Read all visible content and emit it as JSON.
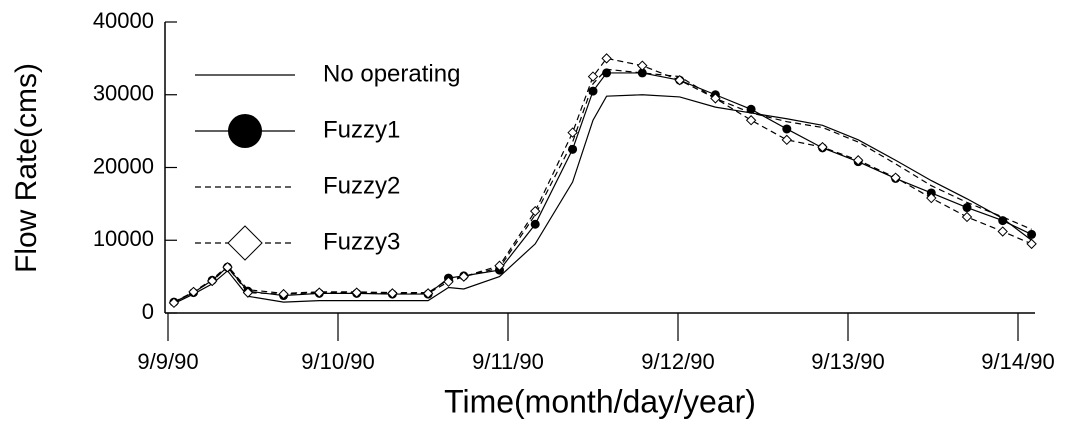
{
  "chart_data": {
    "type": "line",
    "xlabel": "Time(month/day/year)",
    "ylabel": "Flow Rate(cms)",
    "x": [
      0.035,
      0.15,
      0.26,
      0.35,
      0.47,
      0.68,
      0.89,
      1.11,
      1.32,
      1.53,
      1.65,
      1.74,
      1.95,
      2.16,
      2.38,
      2.5,
      2.58,
      2.79,
      3.01,
      3.22,
      3.43,
      3.64,
      3.85,
      4.06,
      4.28,
      4.49,
      4.7,
      4.91,
      5.08
    ],
    "series": [
      {
        "name": "No operating",
        "color": "#000000",
        "dash": "solid",
        "marker": "none",
        "values": [
          1300,
          2600,
          4000,
          5800,
          2300,
          1500,
          1700,
          1700,
          1700,
          1700,
          3500,
          3300,
          5000,
          9500,
          18000,
          26500,
          29800,
          30000,
          29700,
          28300,
          27500,
          26700,
          25800,
          23800,
          21000,
          18200,
          15700,
          13000,
          10000
        ]
      },
      {
        "name": "Fuzzy1",
        "color": "#000000",
        "dash": "solid",
        "marker": "circle",
        "values": [
          1500,
          2800,
          4500,
          6300,
          3000,
          2400,
          2700,
          2700,
          2600,
          2600,
          4800,
          5100,
          5900,
          12200,
          22500,
          30500,
          33000,
          33000,
          32000,
          30000,
          28000,
          25300,
          22700,
          20800,
          18500,
          16500,
          14500,
          12700,
          10800
        ]
      },
      {
        "name": "Fuzzy2",
        "color": "#000000",
        "dash": "dashed",
        "marker": "none",
        "values": [
          1500,
          2900,
          4600,
          6500,
          3200,
          2700,
          2900,
          2900,
          2800,
          2800,
          4600,
          5000,
          6200,
          13500,
          23500,
          31500,
          33500,
          33000,
          32500,
          29500,
          27500,
          26300,
          25500,
          23500,
          20500,
          17500,
          15200,
          13200,
          11500
        ]
      },
      {
        "name": "Fuzzy3",
        "color": "#000000",
        "dash": "dashed",
        "marker": "diamond",
        "values": [
          1400,
          2900,
          4400,
          6300,
          2800,
          2600,
          2800,
          2800,
          2700,
          2700,
          4300,
          5000,
          6500,
          14000,
          24800,
          32500,
          35000,
          34000,
          32000,
          29500,
          26500,
          23800,
          22800,
          21000,
          18600,
          15800,
          13200,
          11200,
          9500
        ]
      }
    ],
    "xlim": [
      0,
      5.1
    ],
    "xticks": [
      {
        "value": 0,
        "label": "9/9/90"
      },
      {
        "value": 1,
        "label": "9/10/90"
      },
      {
        "value": 2,
        "label": "9/11/90"
      },
      {
        "value": 3,
        "label": "9/12/90"
      },
      {
        "value": 4,
        "label": "9/13/90"
      },
      {
        "value": 5,
        "label": "9/14/90"
      }
    ],
    "ylim": [
      0,
      40000
    ],
    "yticks": [
      0,
      10000,
      20000,
      30000,
      40000
    ],
    "legend": "upper left"
  }
}
